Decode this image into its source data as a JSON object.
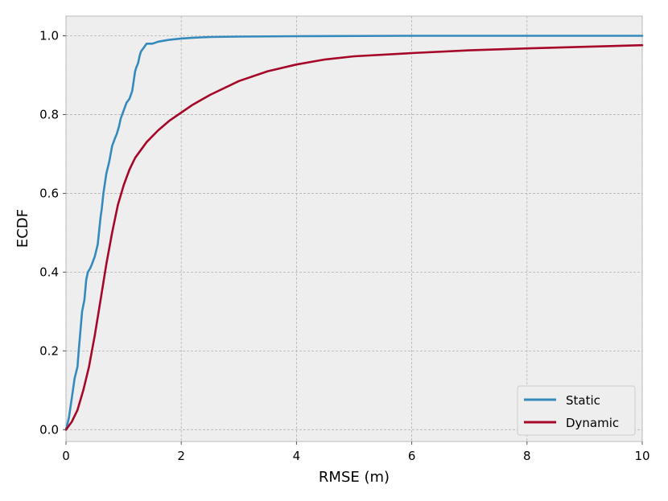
{
  "chart_data": {
    "type": "line",
    "title": "",
    "xlabel": "RMSE (m)",
    "ylabel": "ECDF",
    "xlim": [
      0,
      10
    ],
    "ylim": [
      -0.03,
      1.05
    ],
    "xticks": [
      0,
      2,
      4,
      6,
      8,
      10
    ],
    "xtick_labels": [
      "0",
      "2",
      "4",
      "6",
      "8",
      "10"
    ],
    "yticks": [
      0.0,
      0.2,
      0.4,
      0.6,
      0.8,
      1.0
    ],
    "ytick_labels": [
      "0.0",
      "0.2",
      "0.4",
      "0.6",
      "0.8",
      "1.0"
    ],
    "grid": true,
    "legend_position": "bottom-right",
    "background": "#eeeeee",
    "series": [
      {
        "name": "Static",
        "color": "#348abd",
        "x": [
          0.0,
          0.05,
          0.1,
          0.15,
          0.2,
          0.22,
          0.25,
          0.28,
          0.32,
          0.35,
          0.38,
          0.42,
          0.45,
          0.5,
          0.55,
          0.6,
          0.62,
          0.65,
          0.7,
          0.75,
          0.8,
          0.85,
          0.88,
          0.92,
          0.95,
          1.0,
          1.05,
          1.1,
          1.15,
          1.2,
          1.22,
          1.25,
          1.28,
          1.3,
          1.35,
          1.4,
          1.5,
          1.6,
          1.8,
          2.0,
          2.2,
          2.5,
          3.0,
          4.0,
          6.0,
          8.0,
          10.0
        ],
        "y": [
          0.0,
          0.03,
          0.08,
          0.13,
          0.16,
          0.2,
          0.25,
          0.3,
          0.33,
          0.38,
          0.4,
          0.41,
          0.42,
          0.44,
          0.47,
          0.54,
          0.56,
          0.6,
          0.65,
          0.68,
          0.72,
          0.74,
          0.75,
          0.77,
          0.79,
          0.81,
          0.83,
          0.84,
          0.86,
          0.91,
          0.92,
          0.93,
          0.95,
          0.96,
          0.97,
          0.98,
          0.98,
          0.985,
          0.99,
          0.993,
          0.995,
          0.997,
          0.998,
          0.999,
          1.0,
          1.0,
          1.0
        ]
      },
      {
        "name": "Dynamic",
        "color": "#a60628",
        "x": [
          0.0,
          0.1,
          0.2,
          0.3,
          0.4,
          0.5,
          0.6,
          0.7,
          0.8,
          0.9,
          1.0,
          1.1,
          1.2,
          1.4,
          1.6,
          1.8,
          2.0,
          2.2,
          2.5,
          3.0,
          3.5,
          4.0,
          4.5,
          5.0,
          6.0,
          7.0,
          8.0,
          9.0,
          10.0
        ],
        "y": [
          0.0,
          0.02,
          0.05,
          0.1,
          0.16,
          0.24,
          0.33,
          0.42,
          0.5,
          0.57,
          0.62,
          0.66,
          0.69,
          0.73,
          0.76,
          0.785,
          0.805,
          0.825,
          0.85,
          0.885,
          0.91,
          0.927,
          0.94,
          0.948,
          0.956,
          0.963,
          0.968,
          0.972,
          0.976
        ]
      }
    ]
  }
}
